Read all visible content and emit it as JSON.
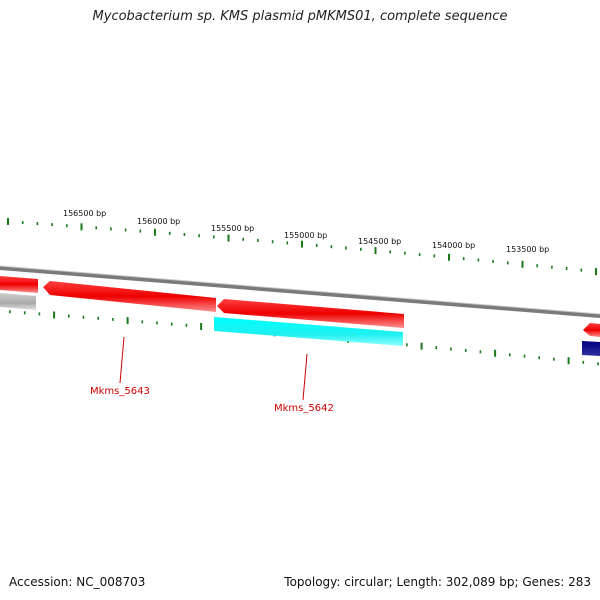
{
  "title": "Mycobacterium sp. KMS plasmid pMKMS01, complete sequence",
  "accession": "Accession: NC_008703",
  "summary": "Topology: circular; Length: 302,089 bp; Genes: 283",
  "colors": {
    "forward_gene": "#ff0000",
    "reverse_gene": "#00ffff",
    "other_gene": "#000080",
    "grey_feature": "#b8b8b8",
    "backbone": "#888888",
    "tick": "#1a7a1a",
    "gene_label": "#cc0000"
  },
  "ticks": {
    "labels": [
      "156500 bp",
      "156000 bp",
      "155500 bp",
      "155000 bp",
      "154500 bp",
      "154000 bp",
      "153500 bp"
    ]
  },
  "gene_labels": [
    "Mkms_5643",
    "Mkms_5642"
  ]
}
